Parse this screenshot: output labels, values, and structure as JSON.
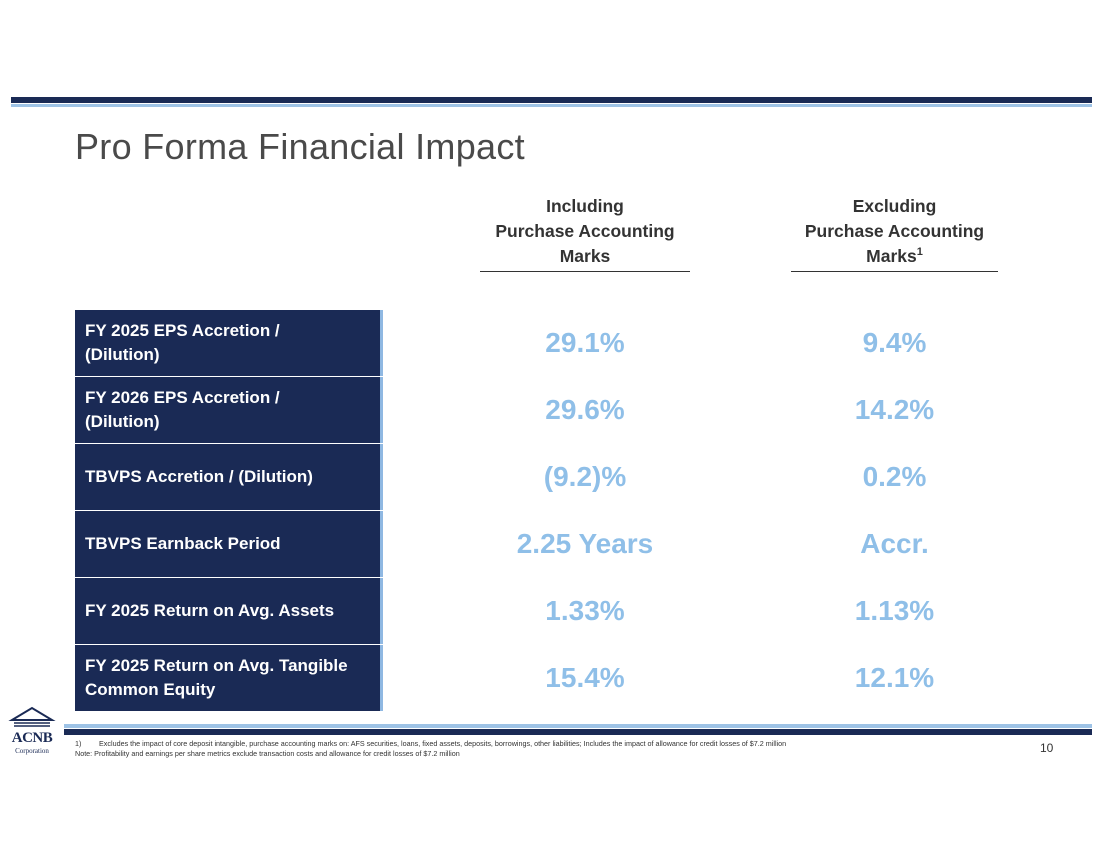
{
  "title": "Pro Forma Financial Impact",
  "columns": {
    "including": {
      "line1": "Including",
      "line2": "Purchase Accounting",
      "line3": "Marks"
    },
    "excluding": {
      "line1": "Excluding",
      "line2": "Purchase Accounting",
      "line3": "Marks",
      "marker": "1"
    }
  },
  "rows": [
    {
      "label_line1": "FY 2025 EPS Accretion /",
      "label_line2": "(Dilution)",
      "including": "29.1%",
      "excluding": "9.4%"
    },
    {
      "label_line1": "FY 2026 EPS Accretion /",
      "label_line2": "(Dilution)",
      "including": "29.6%",
      "excluding": "14.2%"
    },
    {
      "label_line1": "TBVPS Accretion / (Dilution)",
      "label_line2": "",
      "including": "(9.2)%",
      "excluding": "0.2%"
    },
    {
      "label_line1": "TBVPS Earnback Period",
      "label_line2": "",
      "including": "2.25 Years",
      "excluding": "Accr."
    },
    {
      "label_line1": "FY 2025 Return on Avg. Assets",
      "label_line2": "",
      "including": "1.33%",
      "excluding": "1.13%"
    },
    {
      "label_line1": "FY 2025 Return on Avg. Tangible",
      "label_line2": "Common Equity",
      "including": "15.4%",
      "excluding": "12.1%"
    }
  ],
  "footnotes": {
    "note1_num": "1)",
    "note1": "Excludes the impact of core deposit intangible, purchase accounting marks on: AFS securities, loans, fixed assets, deposits, borrowings, other liabilities; Includes the impact of allowance for credit losses of $7.2 million",
    "note2": "Note: Profitability and earnings per share metrics exclude transaction costs and allowance for credit losses of $7.2 million"
  },
  "logo": {
    "name": "ACNB",
    "sub": "Corporation",
    "icon": "bank-building-icon"
  },
  "page_number": "10",
  "colors": {
    "navy": "#1a2a55",
    "light_blue": "#8fbfe8",
    "accent": "#9ec3e6"
  }
}
